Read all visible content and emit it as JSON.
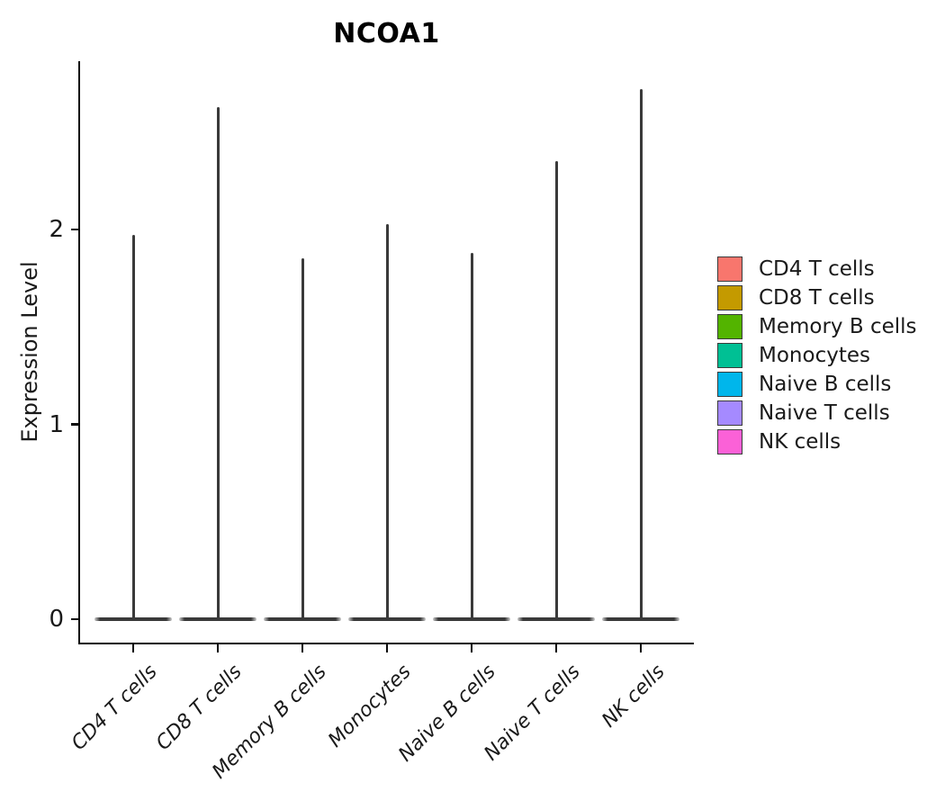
{
  "title": "NCOA1",
  "ylabel": "Expression Level",
  "chart_data": {
    "type": "violin",
    "title": "NCOA1",
    "xlabel": "",
    "ylabel": "Expression Level",
    "categories": [
      "CD4 T cells",
      "CD8 T cells",
      "Memory B cells",
      "Monocytes",
      "Naive B cells",
      "Naive T cells",
      "NK cells"
    ],
    "series": [
      {
        "name": "max_expression",
        "description": "top of each violin spike (expression level)",
        "values": [
          1.97,
          2.63,
          1.85,
          2.03,
          1.88,
          2.35,
          2.72
        ]
      },
      {
        "name": "bulk_expression",
        "description": "flat violin mass centered at this value",
        "values": [
          0,
          0,
          0,
          0,
          0,
          0,
          0
        ]
      }
    ],
    "category_colors": [
      "#F8766D",
      "#C49A00",
      "#53B400",
      "#00C094",
      "#00B6EB",
      "#A58AFF",
      "#FB61D7"
    ],
    "violin_outline_color": "#3a3a3a",
    "axis_color": "#0a0a0a",
    "yticks": [
      0,
      1,
      2
    ],
    "ylim": [
      0,
      2.86
    ],
    "grid": false,
    "legend_position": "right",
    "x_tick_style": "italic, rotated 45deg"
  },
  "legend": {
    "items": [
      {
        "label": "CD4 T cells",
        "color": "#F8766D"
      },
      {
        "label": "CD8 T cells",
        "color": "#C49A00"
      },
      {
        "label": "Memory B cells",
        "color": "#53B400"
      },
      {
        "label": "Monocytes",
        "color": "#00C094"
      },
      {
        "label": "Naive B cells",
        "color": "#00B6EB"
      },
      {
        "label": "Naive T cells",
        "color": "#A58AFF"
      },
      {
        "label": "NK cells",
        "color": "#FB61D7"
      }
    ]
  }
}
